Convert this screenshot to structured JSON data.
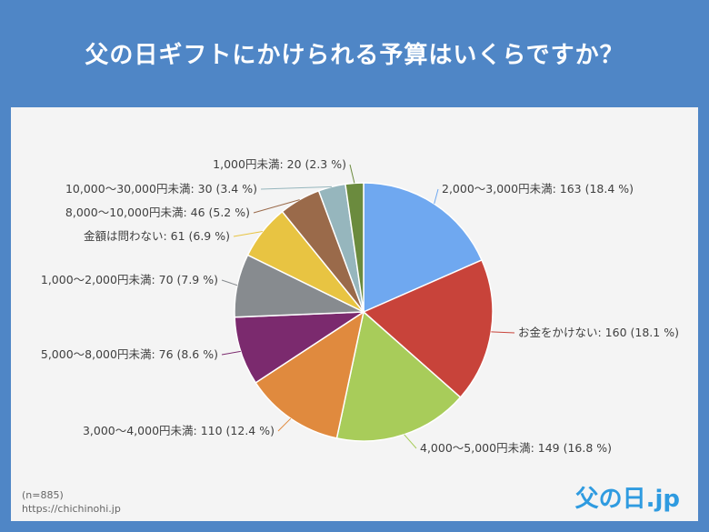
{
  "header": {
    "title": "父の日ギフトにかけられる予算はいくらですか？"
  },
  "footer": {
    "sample": "(n=885)",
    "url": "https://chichinohi.jp"
  },
  "logo": {
    "text": "父の日.jp"
  },
  "colors": {
    "header_bg": "#4f86c6",
    "panel_bg": "#f4f4f4"
  },
  "chart_data": {
    "type": "pie",
    "title": "父の日ギフトにかけられる予算はいくらですか？",
    "slices": [
      {
        "label": "2,000〜3,000円未満",
        "count": 163,
        "percent": 18.4,
        "display": "2,000〜3,000円未満: 163 (18.4 %)",
        "color": "#6fa8f0"
      },
      {
        "label": "お金をかけない",
        "count": 160,
        "percent": 18.1,
        "display": "お金をかけない: 160 (18.1 %)",
        "color": "#c8433a"
      },
      {
        "label": "4,000〜5,000円未満",
        "count": 149,
        "percent": 16.8,
        "display": "4,000〜5,000円未満: 149 (16.8 %)",
        "color": "#a8cc5a"
      },
      {
        "label": "3,000〜4,000円未満",
        "count": 110,
        "percent": 12.4,
        "display": "3,000〜4,000円未満: 110 (12.4 %)",
        "color": "#e08a3e"
      },
      {
        "label": "5,000〜8,000円未満",
        "count": 76,
        "percent": 8.6,
        "display": "5,000〜8,000円未満: 76 (8.6 %)",
        "color": "#7b2a6e"
      },
      {
        "label": "1,000〜2,000円未満",
        "count": 70,
        "percent": 7.9,
        "display": "1,000〜2,000円未満: 70 (7.9 %)",
        "color": "#878b8f"
      },
      {
        "label": "金額は問わない",
        "count": 61,
        "percent": 6.9,
        "display": "金額は問わない: 61 (6.9 %)",
        "color": "#e8c442"
      },
      {
        "label": "8,000〜10,000円未満",
        "count": 46,
        "percent": 5.2,
        "display": "8,000〜10,000円未満: 46 (5.2 %)",
        "color": "#9a6a4a"
      },
      {
        "label": "10,000〜30,000円未満",
        "count": 30,
        "percent": 3.4,
        "display": "10,000〜30,000円未満: 30 (3.4 %)",
        "color": "#96b6bd"
      },
      {
        "label": "1,000円未満",
        "count": 20,
        "percent": 2.3,
        "display": "1,000円未満: 20 (2.3 %)",
        "color": "#6b8b3e"
      }
    ]
  }
}
